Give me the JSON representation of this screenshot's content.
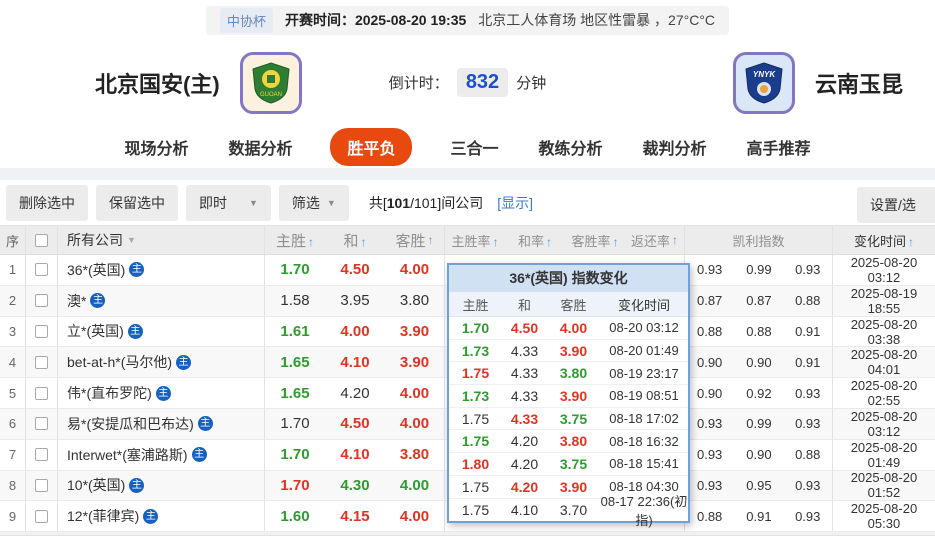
{
  "meta": {
    "league": "中协杯",
    "kickoff": "开赛时间：2025-08-20 19:35",
    "venue_weather": "北京工人体育场  地区性雷暴 ，27°C°C"
  },
  "teams": {
    "home": {
      "name": "北京国安(主)",
      "badge_text": "GUOAN"
    },
    "away": {
      "name": "云南玉昆",
      "badge_text": "YNYK"
    }
  },
  "countdown": {
    "label": "倒计时：",
    "value": "832",
    "unit": "分钟"
  },
  "nav": {
    "active_index": 2,
    "tabs": [
      {
        "label": "现场分析"
      },
      {
        "label": "数据分析"
      },
      {
        "label": "胜平负"
      },
      {
        "label": "三合一"
      },
      {
        "label": "教练分析"
      },
      {
        "label": "裁判分析"
      },
      {
        "label": "高手推荐"
      }
    ]
  },
  "toolbar": {
    "delete_btn": "删除选中",
    "keep_btn": "保留选中",
    "instant_dd": "即时",
    "filter_dd": "筛选",
    "count_prefix": "共[",
    "count_bold": "101",
    "count_suffix": "/101]间公司",
    "show_link": "[显示]",
    "settings_btn": "设置/选"
  },
  "table": {
    "headers": {
      "no": "序",
      "company": "所有公司",
      "home_win": "主胜",
      "draw": "和",
      "away_win": "客胜",
      "home_rate": "主胜率",
      "draw_rate": "和率",
      "away_rate": "客胜率",
      "return_rate": "返还率",
      "kelly": "凯利指数",
      "change_time": "变化时间"
    },
    "rows": [
      {
        "no": "1",
        "company": "36*(英国)",
        "odds": [
          {
            "v": "1.70",
            "c": "g"
          },
          {
            "v": "4.50",
            "c": "r"
          },
          {
            "v": "4.00",
            "c": "r"
          }
        ],
        "kelly": [
          "0.93",
          "0.99",
          "0.93"
        ],
        "time": "2025-08-20 03:12"
      },
      {
        "no": "2",
        "company": "澳*",
        "odds": [
          {
            "v": "1.58",
            "c": "k"
          },
          {
            "v": "3.95",
            "c": "k"
          },
          {
            "v": "3.80",
            "c": "k"
          }
        ],
        "kelly": [
          "0.87",
          "0.87",
          "0.88"
        ],
        "time": "2025-08-19 18:55"
      },
      {
        "no": "3",
        "company": "立*(英国)",
        "odds": [
          {
            "v": "1.61",
            "c": "g"
          },
          {
            "v": "4.00",
            "c": "r"
          },
          {
            "v": "3.90",
            "c": "r"
          }
        ],
        "kelly": [
          "0.88",
          "0.88",
          "0.91"
        ],
        "time": "2025-08-20 03:38"
      },
      {
        "no": "4",
        "company": "bet-at-h*(马尔他)",
        "odds": [
          {
            "v": "1.65",
            "c": "g"
          },
          {
            "v": "4.10",
            "c": "r"
          },
          {
            "v": "3.90",
            "c": "r"
          }
        ],
        "kelly": [
          "0.90",
          "0.90",
          "0.91"
        ],
        "time": "2025-08-20 04:01"
      },
      {
        "no": "5",
        "company": "伟*(直布罗陀)",
        "odds": [
          {
            "v": "1.65",
            "c": "g"
          },
          {
            "v": "4.20",
            "c": "k"
          },
          {
            "v": "4.00",
            "c": "r"
          }
        ],
        "kelly": [
          "0.90",
          "0.92",
          "0.93"
        ],
        "time": "2025-08-20 02:55"
      },
      {
        "no": "6",
        "company": "易*(安提瓜和巴布达)",
        "odds": [
          {
            "v": "1.70",
            "c": "k"
          },
          {
            "v": "4.50",
            "c": "r"
          },
          {
            "v": "4.00",
            "c": "r"
          }
        ],
        "kelly": [
          "0.93",
          "0.99",
          "0.93"
        ],
        "time": "2025-08-20 03:12"
      },
      {
        "no": "7",
        "company": "Interwet*(塞浦路斯)",
        "odds": [
          {
            "v": "1.70",
            "c": "g"
          },
          {
            "v": "4.10",
            "c": "r"
          },
          {
            "v": "3.80",
            "c": "r"
          }
        ],
        "kelly": [
          "0.93",
          "0.90",
          "0.88"
        ],
        "time": "2025-08-20 01:49"
      },
      {
        "no": "8",
        "company": "10*(英国)",
        "odds": [
          {
            "v": "1.70",
            "c": "r"
          },
          {
            "v": "4.30",
            "c": "g"
          },
          {
            "v": "4.00",
            "c": "g"
          }
        ],
        "kelly": [
          "0.93",
          "0.95",
          "0.93"
        ],
        "time": "2025-08-20 01:52"
      },
      {
        "no": "9",
        "company": "12*(菲律宾)",
        "odds": [
          {
            "v": "1.60",
            "c": "g"
          },
          {
            "v": "4.15",
            "c": "r"
          },
          {
            "v": "4.00",
            "c": "r"
          }
        ],
        "kelly": [
          "0.88",
          "0.91",
          "0.93"
        ],
        "time": "2025-08-20 05:30"
      }
    ]
  },
  "popup": {
    "title": "36*(英国) 指数变化",
    "headers": {
      "home_win": "主胜",
      "draw": "和",
      "away_win": "客胜",
      "change_time": "变化时间"
    },
    "rows": [
      {
        "odds": [
          {
            "v": "1.70",
            "c": "g"
          },
          {
            "v": "4.50",
            "c": "r"
          },
          {
            "v": "4.00",
            "c": "r"
          }
        ],
        "time": "08-20 03:12"
      },
      {
        "odds": [
          {
            "v": "1.73",
            "c": "g"
          },
          {
            "v": "4.33",
            "c": "k"
          },
          {
            "v": "3.90",
            "c": "r"
          }
        ],
        "time": "08-20 01:49"
      },
      {
        "odds": [
          {
            "v": "1.75",
            "c": "r"
          },
          {
            "v": "4.33",
            "c": "k"
          },
          {
            "v": "3.80",
            "c": "g"
          }
        ],
        "time": "08-19 23:17"
      },
      {
        "odds": [
          {
            "v": "1.73",
            "c": "g"
          },
          {
            "v": "4.33",
            "c": "k"
          },
          {
            "v": "3.90",
            "c": "r"
          }
        ],
        "time": "08-19 08:51"
      },
      {
        "odds": [
          {
            "v": "1.75",
            "c": "k"
          },
          {
            "v": "4.33",
            "c": "r"
          },
          {
            "v": "3.75",
            "c": "g"
          }
        ],
        "time": "08-18 17:02"
      },
      {
        "odds": [
          {
            "v": "1.75",
            "c": "g"
          },
          {
            "v": "4.20",
            "c": "k"
          },
          {
            "v": "3.80",
            "c": "r"
          }
        ],
        "time": "08-18 16:32"
      },
      {
        "odds": [
          {
            "v": "1.80",
            "c": "r"
          },
          {
            "v": "4.20",
            "c": "k"
          },
          {
            "v": "3.75",
            "c": "g"
          }
        ],
        "time": "08-18 15:41"
      },
      {
        "odds": [
          {
            "v": "1.75",
            "c": "k"
          },
          {
            "v": "4.20",
            "c": "r"
          },
          {
            "v": "3.90",
            "c": "r"
          }
        ],
        "time": "08-18 04:30"
      },
      {
        "odds": [
          {
            "v": "1.75",
            "c": "k"
          },
          {
            "v": "4.10",
            "c": "k"
          },
          {
            "v": "3.70",
            "c": "k"
          }
        ],
        "time": "08-17 22:36(初指)"
      }
    ]
  },
  "colors": {
    "odds_up_red": "#e23322",
    "odds_down_green": "#2f9b2f",
    "accent_orange": "#e8490f",
    "countdown_blue": "#1a4fd0",
    "link_blue": "#3a7bd5",
    "popup_border_blue": "#6fa0d8"
  }
}
